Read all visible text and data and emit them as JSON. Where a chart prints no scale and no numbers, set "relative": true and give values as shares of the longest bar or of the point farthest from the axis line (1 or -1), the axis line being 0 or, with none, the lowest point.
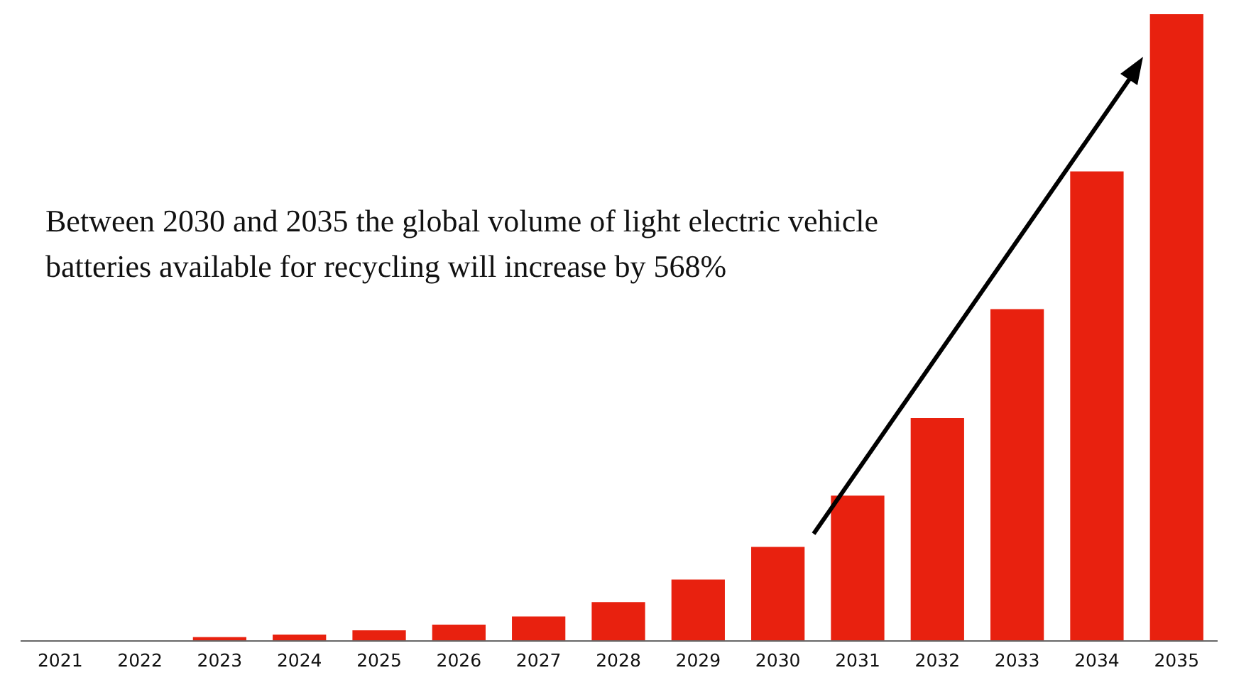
{
  "chart_data": {
    "type": "bar",
    "relative": true,
    "color": "#e8210f",
    "categories": [
      "2021",
      "2022",
      "2023",
      "2024",
      "2025",
      "2026",
      "2027",
      "2028",
      "2029",
      "2030",
      "2031",
      "2032",
      "2033",
      "2034",
      "2035"
    ],
    "values": [
      0,
      0,
      0.005,
      0.009,
      0.016,
      0.025,
      0.038,
      0.061,
      0.097,
      0.149,
      0.231,
      0.355,
      0.529,
      0.749,
      1
    ],
    "annotations": [
      "Between 2030 and 2035 the global volume of light electric vehicle batteries available for recycling will increase by 568%"
    ]
  }
}
